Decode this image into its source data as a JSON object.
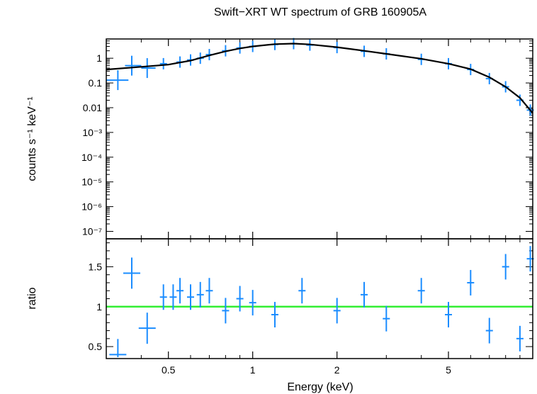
{
  "chart_data": [
    {
      "type": "scatter",
      "title": "Swift−XRT WT spectrum of GRB 160905A",
      "ylabel": "counts s⁻¹ keV⁻¹",
      "yscale": "log",
      "xscale": "log",
      "ylim": [
        5e-08,
        6
      ],
      "xlim": [
        0.3,
        10
      ],
      "y_ticks": [
        "1",
        "0.1",
        "0.01",
        "10⁻³",
        "10⁻⁴",
        "10⁻⁵",
        "10⁻⁶",
        "10⁻⁷"
      ],
      "series": [
        {
          "points": [
            {
              "x": 0.33,
              "y": 0.13,
              "xerr": [
                0.3,
                0.36
              ]
            },
            {
              "x": 0.37,
              "y": 0.5,
              "xerr": [
                0.35,
                0.4
              ]
            },
            {
              "x": 0.42,
              "y": 0.4,
              "xerr": [
                0.4,
                0.45
              ]
            },
            {
              "x": 0.48,
              "y": 0.6
            },
            {
              "x": 0.55,
              "y": 0.7
            },
            {
              "x": 0.6,
              "y": 0.85
            },
            {
              "x": 0.65,
              "y": 1.0
            },
            {
              "x": 0.7,
              "y": 1.4
            },
            {
              "x": 0.8,
              "y": 2.0
            },
            {
              "x": 0.9,
              "y": 2.6
            },
            {
              "x": 1.0,
              "y": 3.0
            },
            {
              "x": 1.2,
              "y": 3.6
            },
            {
              "x": 1.4,
              "y": 3.9
            },
            {
              "x": 1.6,
              "y": 3.4
            },
            {
              "x": 2.0,
              "y": 2.7
            },
            {
              "x": 2.5,
              "y": 1.9
            },
            {
              "x": 3.0,
              "y": 1.5
            },
            {
              "x": 4.0,
              "y": 0.9
            },
            {
              "x": 5.0,
              "y": 0.6
            },
            {
              "x": 6.0,
              "y": 0.35
            },
            {
              "x": 7.0,
              "y": 0.15
            },
            {
              "x": 8.0,
              "y": 0.07
            },
            {
              "x": 9.0,
              "y": 0.02
            },
            {
              "x": 9.8,
              "y": 0.008
            }
          ]
        },
        {
          "line": [
            [
              0.3,
              0.35
            ],
            [
              0.4,
              0.45
            ],
            [
              0.5,
              0.55
            ],
            [
              0.6,
              0.8
            ],
            [
              0.7,
              1.3
            ],
            [
              0.8,
              1.9
            ],
            [
              0.9,
              2.5
            ],
            [
              1.0,
              3.0
            ],
            [
              1.2,
              3.7
            ],
            [
              1.4,
              3.9
            ],
            [
              1.6,
              3.6
            ],
            [
              2.0,
              2.8
            ],
            [
              2.5,
              2.0
            ],
            [
              3.0,
              1.5
            ],
            [
              4.0,
              0.95
            ],
            [
              5.0,
              0.6
            ],
            [
              6.0,
              0.36
            ],
            [
              7.0,
              0.17
            ],
            [
              8.0,
              0.07
            ],
            [
              9.0,
              0.025
            ],
            [
              10.0,
              0.006
            ]
          ]
        }
      ],
      "colors": {
        "data": "#1a8cff",
        "model": "#000000"
      }
    },
    {
      "type": "scatter",
      "ylabel": "ratio",
      "xlabel": "Energy (keV)",
      "xscale": "log",
      "xlim": [
        0.3,
        10
      ],
      "ylim": [
        0.35,
        1.85
      ],
      "x_ticks": [
        {
          "value": 0.5,
          "label": "0.5"
        },
        {
          "value": 1,
          "label": "1"
        },
        {
          "value": 2,
          "label": "2"
        },
        {
          "value": 5,
          "label": "5"
        }
      ],
      "y_ticks": [
        {
          "value": 1.5,
          "label": "1.5"
        },
        {
          "value": 1,
          "label": "1"
        },
        {
          "value": 0.5,
          "label": "0.5"
        }
      ],
      "reference_line": 1,
      "points": [
        {
          "x": 0.33,
          "y": 0.4
        },
        {
          "x": 0.37,
          "y": 1.42
        },
        {
          "x": 0.42,
          "y": 0.73
        },
        {
          "x": 0.48,
          "y": 1.12
        },
        {
          "x": 0.52,
          "y": 1.12
        },
        {
          "x": 0.55,
          "y": 1.2
        },
        {
          "x": 0.6,
          "y": 1.12
        },
        {
          "x": 0.65,
          "y": 1.15
        },
        {
          "x": 0.7,
          "y": 1.2
        },
        {
          "x": 0.8,
          "y": 0.95
        },
        {
          "x": 0.9,
          "y": 1.1
        },
        {
          "x": 1.0,
          "y": 1.05
        },
        {
          "x": 1.2,
          "y": 0.9
        },
        {
          "x": 1.5,
          "y": 1.2
        },
        {
          "x": 2.0,
          "y": 0.95
        },
        {
          "x": 2.5,
          "y": 1.15
        },
        {
          "x": 3.0,
          "y": 0.85
        },
        {
          "x": 4.0,
          "y": 1.2
        },
        {
          "x": 5.0,
          "y": 0.9
        },
        {
          "x": 6.0,
          "y": 1.3
        },
        {
          "x": 7.0,
          "y": 0.7
        },
        {
          "x": 8.0,
          "y": 1.5
        },
        {
          "x": 9.0,
          "y": 0.6
        },
        {
          "x": 9.8,
          "y": 1.6
        }
      ],
      "colors": {
        "data": "#1a8cff",
        "reference": "#33ee33"
      }
    }
  ]
}
